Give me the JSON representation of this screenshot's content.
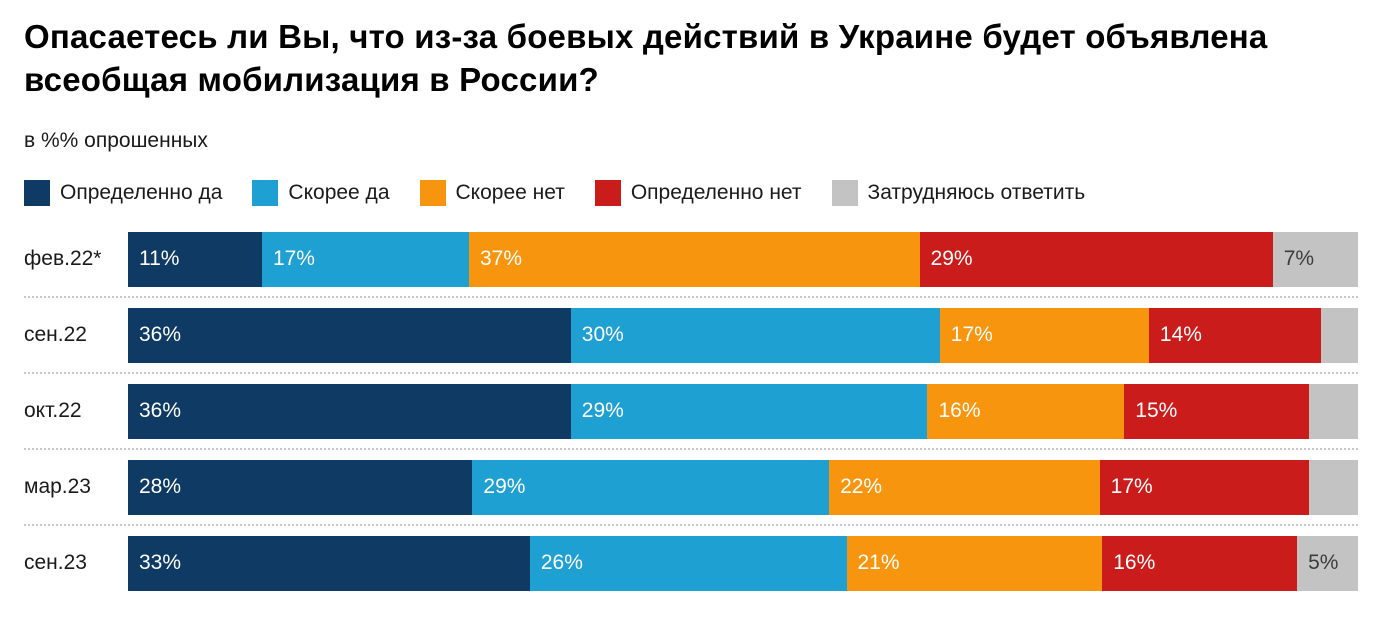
{
  "title": "Опасаетесь ли Вы, что из-за боевых действий в Украине будет объявлена всеобщая мобилизация в России?",
  "subtitle": "в %% опрошенных",
  "legend": [
    {
      "label": "Определенно да",
      "color": "#0e3a63"
    },
    {
      "label": "Скорее да",
      "color": "#1fa0d2"
    },
    {
      "label": "Скорее нет",
      "color": "#f8950f"
    },
    {
      "label": "Определенно нет",
      "color": "#cb1c1c"
    },
    {
      "label": "Затрудняюсь ответить",
      "color": "#c3c3c3"
    }
  ],
  "chart_data": {
    "type": "bar",
    "stacked": true,
    "orientation": "horizontal",
    "value_unit": "%",
    "categories": [
      "фев.22*",
      "сен.22",
      "окт.22",
      "мар.23",
      "сен.23"
    ],
    "series": [
      {
        "name": "Определенно да",
        "color": "#0e3a63",
        "text_color": "#ffffff",
        "values": [
          11,
          36,
          36,
          28,
          33
        ],
        "labels": [
          "11%",
          "36%",
          "36%",
          "28%",
          "33%"
        ]
      },
      {
        "name": "Скорее да",
        "color": "#1fa0d2",
        "text_color": "#ffffff",
        "values": [
          17,
          30,
          29,
          29,
          26
        ],
        "labels": [
          "17%",
          "30%",
          "29%",
          "29%",
          "26%"
        ]
      },
      {
        "name": "Скорее нет",
        "color": "#f8950f",
        "text_color": "#ffffff",
        "values": [
          37,
          17,
          16,
          22,
          21
        ],
        "labels": [
          "37%",
          "17%",
          "16%",
          "22%",
          "21%"
        ]
      },
      {
        "name": "Определенно нет",
        "color": "#cb1c1c",
        "text_color": "#ffffff",
        "values": [
          29,
          14,
          15,
          17,
          16
        ],
        "labels": [
          "29%",
          "14%",
          "15%",
          "17%",
          "16%"
        ]
      },
      {
        "name": "Затрудняюсь ответить",
        "color": "#c3c3c3",
        "text_color": "#3c3c3c",
        "values": [
          7,
          3,
          4,
          4,
          5
        ],
        "labels": [
          "7%",
          "",
          "",
          "",
          "5%"
        ]
      }
    ]
  }
}
